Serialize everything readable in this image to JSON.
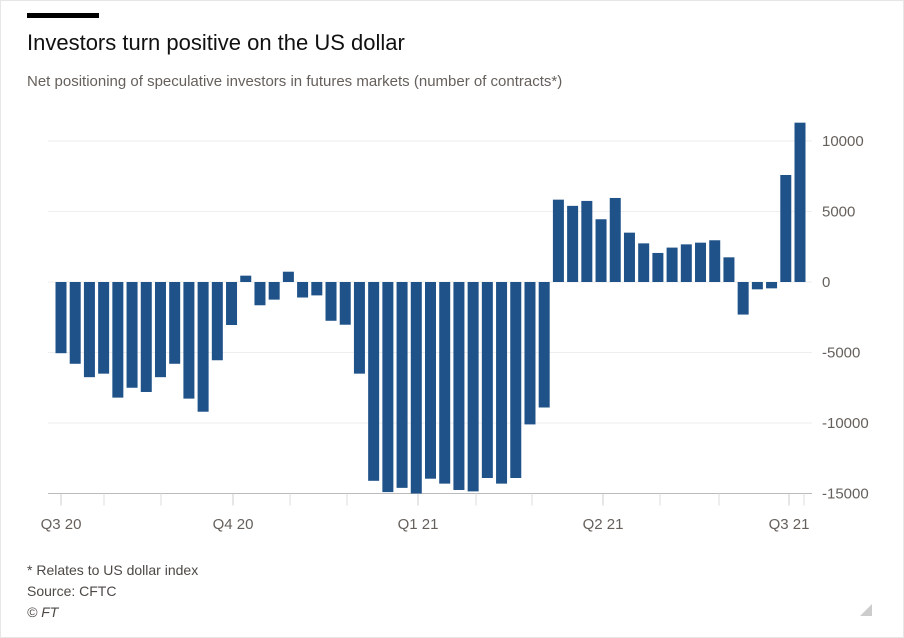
{
  "chart_data": {
    "type": "bar",
    "title": "Investors turn positive on the US dollar",
    "subtitle": "Net positioning of speculative investors in futures markets (number of contracts*)",
    "xlabel": "",
    "ylabel": "",
    "ylim": [
      -15000,
      11500
    ],
    "yticks": [
      10000,
      5000,
      0,
      -5000,
      -10000,
      -15000
    ],
    "ytick_labels": [
      "10000",
      "5000",
      "0",
      "-5000",
      "-10000",
      "-15000"
    ],
    "xtick_labels": [
      "Q3 20",
      "Q4 20",
      "Q1 21",
      "Q2 21",
      "Q3 21"
    ],
    "grid": "horizontal",
    "values": [
      -5050,
      -5800,
      -6750,
      -6500,
      -8200,
      -7500,
      -7800,
      -6750,
      -5800,
      -8270,
      -9200,
      -5550,
      -3050,
      450,
      -1650,
      -1250,
      730,
      -1100,
      -950,
      -2750,
      -3030,
      -6500,
      -14100,
      -14900,
      -14600,
      -15000,
      -13950,
      -14300,
      -14750,
      -14850,
      -13900,
      -14300,
      -13900,
      -10100,
      -8900,
      5840,
      5400,
      5750,
      4450,
      5960,
      3500,
      2740,
      2060,
      2440,
      2670,
      2790,
      2960,
      1750,
      -2310,
      -520,
      -450,
      7590,
      11300
    ],
    "bar_color": "#1f5289"
  },
  "footer": {
    "note": "* Relates to US dollar index",
    "source": "Source: CFTC",
    "copyright": "© FT"
  }
}
